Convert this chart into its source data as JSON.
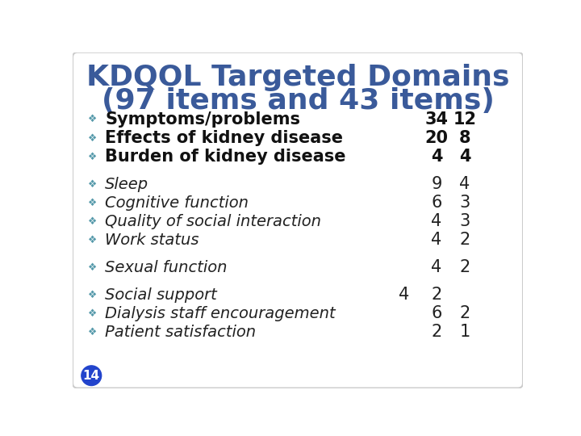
{
  "title_line1": "KDQOL Targeted Domains",
  "title_line2": "(97 items and 43 items)",
  "title_color": "#3a5a9a",
  "background_color": "#ffffff",
  "border_color": "#cccccc",
  "bullet_color": "#5599aa",
  "rows": [
    {
      "label": "Symptoms/problems",
      "col_extra": "",
      "col1": "34",
      "col2": "12",
      "bold": true
    },
    {
      "label": "Effects of kidney disease",
      "col_extra": "",
      "col1": "20",
      "col2": "8",
      "bold": true
    },
    {
      "label": "Burden of kidney disease",
      "col_extra": "",
      "col1": "4",
      "col2": "4",
      "bold": true
    },
    {
      "label": null
    },
    {
      "label": "Sleep",
      "col_extra": "",
      "col1": "9",
      "col2": "4",
      "bold": false
    },
    {
      "label": "Cognitive function",
      "col_extra": "",
      "col1": "6",
      "col2": "3",
      "bold": false
    },
    {
      "label": "Quality of social interaction",
      "col_extra": "",
      "col1": "4",
      "col2": "3",
      "bold": false
    },
    {
      "label": "Work status",
      "col_extra": "",
      "col1": "4",
      "col2": "2",
      "bold": false
    },
    {
      "label": null
    },
    {
      "label": "Sexual function",
      "col_extra": "",
      "col1": "4",
      "col2": "2",
      "bold": false
    },
    {
      "label": null
    },
    {
      "label": "Social support",
      "col_extra": "4",
      "col1": "2",
      "col2": "",
      "bold": false
    },
    {
      "label": "Dialysis staff encouragement",
      "col_extra": "",
      "col1": "6",
      "col2": "2",
      "bold": false
    },
    {
      "label": "Patient satisfaction",
      "col_extra": "",
      "col1": "2",
      "col2": "1",
      "bold": false
    }
  ],
  "footer_number": "14",
  "footer_bg": "#2244cc",
  "footer_text_color": "#ffffff",
  "text_color_normal": "#222222",
  "text_color_bold": "#111111",
  "italic_items": [
    "Sleep",
    "Cognitive function",
    "Quality of social interaction",
    "Work status",
    "Sexual function",
    "Social support",
    "Dialysis staff encouragement",
    "Patient satisfaction"
  ]
}
